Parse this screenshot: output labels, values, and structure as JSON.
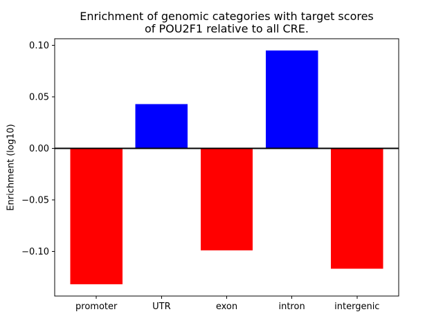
{
  "chart_data": {
    "type": "bar",
    "title": "Enrichment of genomic categories with target scores\nof POU2F1 relative to all CRE.",
    "ylabel": "Enrichment (log10)",
    "xlabel": "",
    "categories": [
      "promoter",
      "UTR",
      "exon",
      "intron",
      "intergenic"
    ],
    "values": [
      -0.132,
      0.043,
      -0.099,
      0.095,
      -0.117
    ],
    "positive_color": "#0000ff",
    "negative_color": "#ff0000",
    "axis_color": "#000000",
    "background_color": "#ffffff",
    "bar_width": 0.8,
    "xlim": [
      -0.64,
      4.64
    ],
    "ylim": [
      -0.1434,
      0.1064
    ],
    "yticks": [
      {
        "value": 0.1,
        "label": "0.10"
      },
      {
        "value": 0.05,
        "label": "0.05"
      },
      {
        "value": 0.0,
        "label": "0.00"
      },
      {
        "value": -0.05,
        "label": "−0.05"
      },
      {
        "value": -0.1,
        "label": "−0.10"
      }
    ],
    "zero_line": true,
    "grid": false,
    "legend": null
  }
}
